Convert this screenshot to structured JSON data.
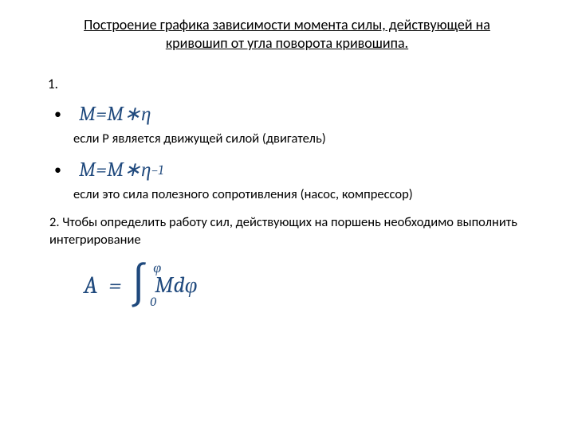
{
  "colors": {
    "text": "#000000",
    "formula": "#1f497d",
    "background": "#ffffff"
  },
  "fonts": {
    "body": "Calibri",
    "math": "Cambria Math"
  },
  "title": {
    "line1": "Построение графика зависимости момента силы, действующей на",
    "line2": "кривошип от угла поворота кривошипа."
  },
  "item1": {
    "number": "1.",
    "bullet": "•",
    "formula1": {
      "lhs": "M",
      "eq": " = ",
      "rhs1": "M",
      "op": " ∗ ",
      "rhs2": "η"
    },
    "explain1": "если Р является движущей силой (двигатель)",
    "formula2": {
      "lhs": "M",
      "eq": "  =  ",
      "rhs1": "M",
      "op": " ∗ ",
      "rhs2": "η",
      "exp": "−1"
    },
    "explain2": "если это сила полезного сопротивления (насос, компрессор)"
  },
  "item2": {
    "text": "2. Чтобы определить работу сил, действующих на поршень необходимо выполнить интегрирование"
  },
  "integral": {
    "lhs": "A",
    "eq": "=",
    "sign": "∫",
    "upper": "φ",
    "lower": "0",
    "body": "Mdφ"
  }
}
